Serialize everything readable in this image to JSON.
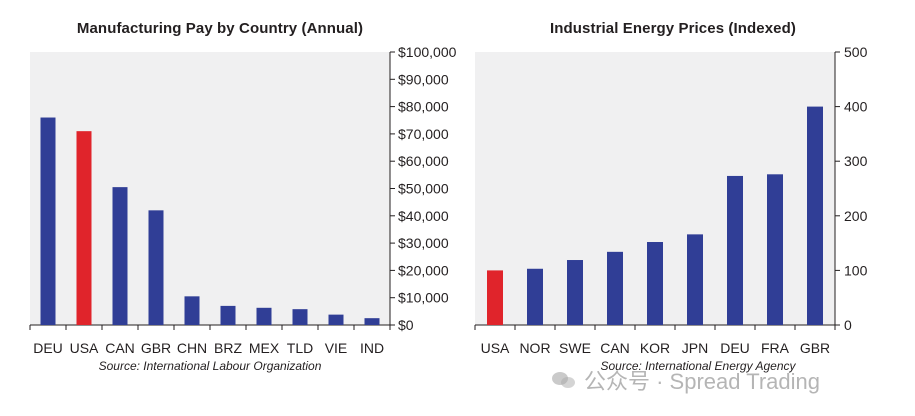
{
  "chart_data": [
    {
      "type": "bar",
      "title": "Manufacturing Pay by Country (Annual)",
      "categories": [
        "DEU",
        "USA",
        "CAN",
        "GBR",
        "CHN",
        "BRZ",
        "MEX",
        "TLD",
        "VIE",
        "IND"
      ],
      "values": [
        76000,
        71000,
        50500,
        42000,
        10500,
        7000,
        6300,
        5800,
        3800,
        2500
      ],
      "highlight": "USA",
      "ylim": [
        0,
        100000
      ],
      "yticks": [
        "$0",
        "$10,000",
        "$20,000",
        "$30,000",
        "$40,000",
        "$50,000",
        "$60,000",
        "$70,000",
        "$80,000",
        "$90,000",
        "$100,000"
      ],
      "ytick_values": [
        0,
        10000,
        20000,
        30000,
        40000,
        50000,
        60000,
        70000,
        80000,
        90000,
        100000
      ],
      "yaxis_side": "right",
      "source": "Source: International Labour Organization"
    },
    {
      "type": "bar",
      "title": "Industrial Energy Prices (Indexed)",
      "categories": [
        "USA",
        "NOR",
        "SWE",
        "CAN",
        "KOR",
        "JPN",
        "DEU",
        "FRA",
        "GBR"
      ],
      "values": [
        100,
        103,
        119,
        134,
        152,
        166,
        273,
        276,
        400
      ],
      "highlight": "USA",
      "ylim": [
        0,
        500
      ],
      "yticks": [
        "0",
        "100",
        "200",
        "300",
        "400",
        "500"
      ],
      "ytick_values": [
        0,
        100,
        200,
        300,
        400,
        500
      ],
      "yaxis_side": "right",
      "source": "Source: International Energy Agency"
    }
  ],
  "colors": {
    "bar": "#303e96",
    "highlight": "#e0242b",
    "panel_bg": "#f0f0f1",
    "axis": "#231f20"
  },
  "watermark": {
    "text": "公众号 · Spread Trading",
    "icon": "wechat-icon"
  }
}
